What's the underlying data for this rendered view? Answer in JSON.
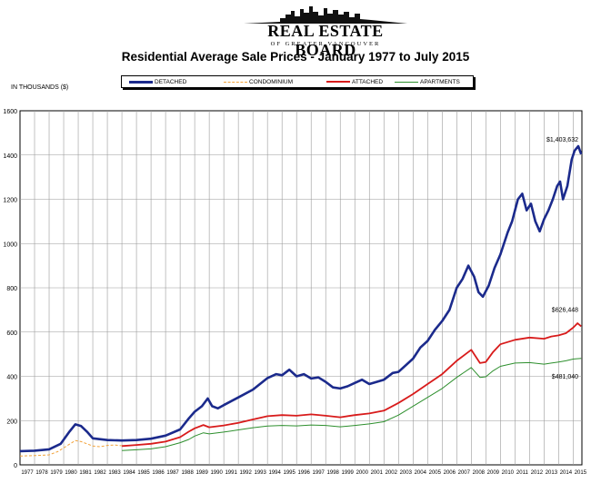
{
  "logo": {
    "title": "REAL ESTATE BOARD",
    "subtitle": "OF GREATER VANCOUVER"
  },
  "chart_data": {
    "type": "line",
    "title": "Residential Average Sale Prices  -  January 1977 to July 2015",
    "ylabel": "IN THOUSANDS ($)",
    "xlabel": "",
    "ylim": [
      0,
      1600
    ],
    "yticks": [
      "0",
      "200",
      "400",
      "600",
      "800",
      "1000",
      "1200",
      "1400",
      "1600"
    ],
    "ytick_values": [
      0,
      200,
      400,
      600,
      800,
      1000,
      1200,
      1400,
      1600
    ],
    "xticks": [
      "1977",
      "1978",
      "1979",
      "1980",
      "1981",
      "1982",
      "1983",
      "1984",
      "1985",
      "1986",
      "1987",
      "1988",
      "1989",
      "1990",
      "1991",
      "1992",
      "1993",
      "1994",
      "1995",
      "1996",
      "1997",
      "1998",
      "1999",
      "2000",
      "2001",
      "2002",
      "2003",
      "2004",
      "2005",
      "2006",
      "2007",
      "2008",
      "2009",
      "2010",
      "2011",
      "2012",
      "2013",
      "2014",
      "2015"
    ],
    "xlim": [
      1977,
      2015.6
    ],
    "grid": true,
    "legend_position": "top",
    "series": [
      {
        "name": "DETACHED",
        "color": "#1b2a8c",
        "style": "solid",
        "points": [
          [
            1977,
            62
          ],
          [
            1978,
            64
          ],
          [
            1979,
            70
          ],
          [
            1979.8,
            95
          ],
          [
            1980.4,
            150
          ],
          [
            1980.8,
            183
          ],
          [
            1981.2,
            175
          ],
          [
            1981.6,
            150
          ],
          [
            1982,
            120
          ],
          [
            1983,
            112
          ],
          [
            1984,
            110
          ],
          [
            1985,
            112
          ],
          [
            1986,
            118
          ],
          [
            1987,
            132
          ],
          [
            1988,
            160
          ],
          [
            1988.6,
            210
          ],
          [
            1989,
            240
          ],
          [
            1989.5,
            265
          ],
          [
            1989.9,
            300
          ],
          [
            1990.2,
            265
          ],
          [
            1990.6,
            255
          ],
          [
            1991,
            270
          ],
          [
            1992,
            305
          ],
          [
            1993,
            340
          ],
          [
            1994,
            392
          ],
          [
            1994.6,
            410
          ],
          [
            1995,
            405
          ],
          [
            1995.5,
            430
          ],
          [
            1996,
            400
          ],
          [
            1996.5,
            410
          ],
          [
            1997,
            390
          ],
          [
            1997.5,
            395
          ],
          [
            1998,
            375
          ],
          [
            1998.5,
            350
          ],
          [
            1999,
            345
          ],
          [
            1999.5,
            355
          ],
          [
            2000,
            370
          ],
          [
            2000.5,
            385
          ],
          [
            2001,
            365
          ],
          [
            2001.5,
            375
          ],
          [
            2002,
            385
          ],
          [
            2002.6,
            415
          ],
          [
            2003,
            420
          ],
          [
            2003.5,
            450
          ],
          [
            2004,
            480
          ],
          [
            2004.5,
            530
          ],
          [
            2005,
            560
          ],
          [
            2005.5,
            610
          ],
          [
            2006,
            650
          ],
          [
            2006.5,
            700
          ],
          [
            2007,
            800
          ],
          [
            2007.4,
            840
          ],
          [
            2007.8,
            900
          ],
          [
            2008.2,
            850
          ],
          [
            2008.5,
            780
          ],
          [
            2008.8,
            760
          ],
          [
            2009.2,
            810
          ],
          [
            2009.6,
            890
          ],
          [
            2010,
            950
          ],
          [
            2010.5,
            1050
          ],
          [
            2010.8,
            1100
          ],
          [
            2011.2,
            1200
          ],
          [
            2011.5,
            1225
          ],
          [
            2011.8,
            1150
          ],
          [
            2012.1,
            1180
          ],
          [
            2012.4,
            1100
          ],
          [
            2012.7,
            1055
          ],
          [
            2013,
            1110
          ],
          [
            2013.3,
            1150
          ],
          [
            2013.6,
            1200
          ],
          [
            2013.9,
            1260
          ],
          [
            2014.1,
            1280
          ],
          [
            2014.3,
            1200
          ],
          [
            2014.6,
            1260
          ],
          [
            2014.9,
            1380
          ],
          [
            2015.1,
            1420
          ],
          [
            2015.35,
            1440
          ],
          [
            2015.55,
            1404
          ]
        ]
      },
      {
        "name": "CONDOMINIUM",
        "color": "#f2a23a",
        "style": "dashed",
        "points": [
          [
            1977,
            40
          ],
          [
            1978,
            42
          ],
          [
            1979,
            45
          ],
          [
            1979.6,
            60
          ],
          [
            1980.2,
            85
          ],
          [
            1980.8,
            110
          ],
          [
            1981.2,
            105
          ],
          [
            1981.6,
            95
          ],
          [
            1982,
            85
          ],
          [
            1982.5,
            82
          ],
          [
            1983,
            88
          ],
          [
            1983.5,
            90
          ],
          [
            1984,
            86
          ]
        ]
      },
      {
        "name": "ATTACHED",
        "color": "#d81b1b",
        "style": "solid",
        "points": [
          [
            1984,
            85
          ],
          [
            1985,
            90
          ],
          [
            1986,
            95
          ],
          [
            1987,
            105
          ],
          [
            1988,
            125
          ],
          [
            1988.6,
            150
          ],
          [
            1989,
            165
          ],
          [
            1989.6,
            180
          ],
          [
            1990,
            170
          ],
          [
            1991,
            178
          ],
          [
            1992,
            190
          ],
          [
            1993,
            205
          ],
          [
            1994,
            220
          ],
          [
            1995,
            225
          ],
          [
            1996,
            222
          ],
          [
            1997,
            228
          ],
          [
            1998,
            222
          ],
          [
            1999,
            215
          ],
          [
            2000,
            225
          ],
          [
            2001,
            232
          ],
          [
            2002,
            245
          ],
          [
            2003,
            280
          ],
          [
            2004,
            320
          ],
          [
            2005,
            365
          ],
          [
            2006,
            410
          ],
          [
            2007,
            470
          ],
          [
            2008,
            520
          ],
          [
            2008.6,
            460
          ],
          [
            2009,
            465
          ],
          [
            2009.5,
            510
          ],
          [
            2010,
            545
          ],
          [
            2011,
            565
          ],
          [
            2012,
            575
          ],
          [
            2013,
            570
          ],
          [
            2013.5,
            580
          ],
          [
            2014,
            585
          ],
          [
            2014.5,
            595
          ],
          [
            2015,
            620
          ],
          [
            2015.3,
            640
          ],
          [
            2015.55,
            626
          ]
        ]
      },
      {
        "name": "APARTMENTS",
        "color": "#2d8f2d",
        "style": "solid",
        "points": [
          [
            1984,
            65
          ],
          [
            1985,
            68
          ],
          [
            1986,
            72
          ],
          [
            1987,
            82
          ],
          [
            1988,
            100
          ],
          [
            1988.6,
            115
          ],
          [
            1989,
            130
          ],
          [
            1989.6,
            145
          ],
          [
            1990,
            140
          ],
          [
            1991,
            148
          ],
          [
            1992,
            158
          ],
          [
            1993,
            168
          ],
          [
            1994,
            175
          ],
          [
            1995,
            178
          ],
          [
            1996,
            176
          ],
          [
            1997,
            180
          ],
          [
            1998,
            178
          ],
          [
            1999,
            172
          ],
          [
            2000,
            178
          ],
          [
            2001,
            185
          ],
          [
            2002,
            195
          ],
          [
            2003,
            225
          ],
          [
            2004,
            265
          ],
          [
            2005,
            305
          ],
          [
            2006,
            345
          ],
          [
            2007,
            395
          ],
          [
            2008,
            440
          ],
          [
            2008.6,
            395
          ],
          [
            2009,
            398
          ],
          [
            2009.5,
            425
          ],
          [
            2010,
            445
          ],
          [
            2011,
            460
          ],
          [
            2012,
            462
          ],
          [
            2013,
            455
          ],
          [
            2013.5,
            460
          ],
          [
            2014,
            465
          ],
          [
            2014.5,
            470
          ],
          [
            2015,
            478
          ],
          [
            2015.55,
            481
          ]
        ]
      }
    ],
    "annotations": [
      {
        "text": "$1,403,632",
        "series": "DETACHED"
      },
      {
        "text": "$626,448",
        "series": "ATTACHED"
      },
      {
        "text": "$481,040",
        "series": "APARTMENTS"
      }
    ]
  }
}
